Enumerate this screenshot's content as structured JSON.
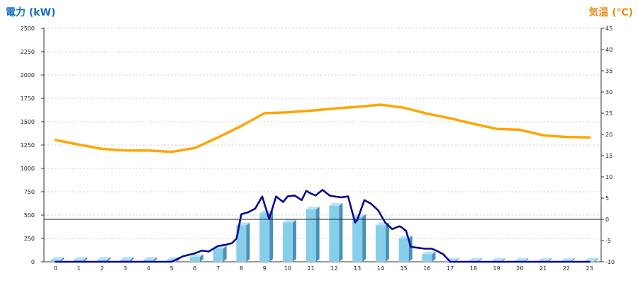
{
  "chart_data": {
    "type": "bar",
    "title": "",
    "xlabel": "",
    "left_axis_label": "電力 (kW)",
    "right_axis_label": "気温 (℃)",
    "categories": [
      "0",
      "1",
      "2",
      "3",
      "4",
      "5",
      "6",
      "7",
      "8",
      "9",
      "10",
      "11",
      "12",
      "13",
      "14",
      "15",
      "16",
      "17",
      "18",
      "19",
      "20",
      "21",
      "22",
      "23"
    ],
    "left_ylim": [
      0,
      2500
    ],
    "left_ticks": [
      "0",
      "250",
      "500",
      "750",
      "1000",
      "1250",
      "1500",
      "1750",
      "2000",
      "2250",
      "2500"
    ],
    "right_ylim": [
      -10,
      45
    ],
    "right_ticks": [
      "-10",
      "-5",
      "0",
      "5",
      "10",
      "15",
      "20",
      "25",
      "30",
      "35",
      "40",
      "45"
    ],
    "grid": true,
    "bars": {
      "axis": "left",
      "color": "#87CEEB",
      "values": [
        20,
        20,
        20,
        20,
        20,
        20,
        50,
        140,
        390,
        520,
        420,
        560,
        600,
        480,
        390,
        250,
        80,
        10,
        10,
        10,
        10,
        10,
        10,
        10
      ]
    },
    "temperature_line": {
      "axis": "right",
      "color": "#FFA500",
      "x": [
        0,
        1,
        2,
        3,
        4,
        5,
        6,
        7,
        8,
        9,
        10,
        11,
        12,
        13,
        14,
        15,
        16,
        17,
        18,
        19,
        20,
        21,
        22,
        23
      ],
      "values": [
        18.7,
        17.6,
        16.6,
        16.2,
        16.2,
        15.9,
        16.8,
        19.3,
        22.0,
        25.0,
        25.2,
        25.6,
        26.1,
        26.5,
        27.0,
        26.3,
        24.9,
        23.8,
        22.5,
        21.3,
        21.1,
        19.8,
        19.4,
        19.3
      ]
    },
    "power_line": {
      "axis": "left",
      "color": "#0A0A8C",
      "x": [
        0,
        1,
        2,
        3,
        4,
        5,
        5.5,
        6,
        6.3,
        6.6,
        6.8,
        7,
        7.3,
        7.6,
        7.8,
        8,
        8.3,
        8.6,
        8.9,
        9,
        9.2,
        9.5,
        9.8,
        10,
        10.3,
        10.6,
        10.8,
        11,
        11.2,
        11.5,
        11.8,
        12,
        12.3,
        12.6,
        12.9,
        13,
        13.3,
        13.6,
        13.9,
        14.2,
        14.5,
        14.8,
        14.9,
        15.1,
        15.3,
        15.6,
        15.9,
        16.2,
        16.4,
        16.7,
        17,
        18,
        19,
        20,
        21,
        22,
        23
      ],
      "values": [
        0,
        0,
        0,
        0,
        0,
        0,
        60,
        90,
        120,
        110,
        140,
        170,
        180,
        200,
        250,
        510,
        530,
        570,
        700,
        620,
        460,
        700,
        640,
        700,
        710,
        660,
        760,
        730,
        710,
        770,
        710,
        700,
        690,
        700,
        420,
        450,
        660,
        620,
        550,
        420,
        350,
        380,
        370,
        330,
        160,
        150,
        140,
        140,
        120,
        80,
        0,
        0,
        0,
        0,
        0,
        0,
        0
      ]
    }
  }
}
